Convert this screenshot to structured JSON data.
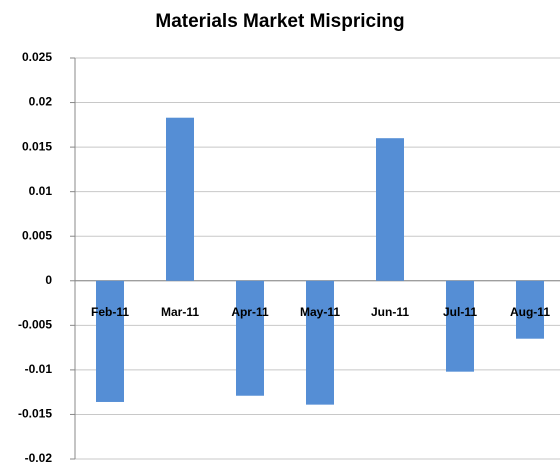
{
  "chart_data": {
    "type": "bar",
    "title": "Materials Market Mispricing",
    "categories": [
      "Feb-11",
      "Mar-11",
      "Apr-11",
      "May-11",
      "Jun-11",
      "Jul-11",
      "Aug-11"
    ],
    "values": [
      -0.0136,
      0.0183,
      -0.0129,
      -0.0139,
      0.016,
      -0.0102,
      -0.0065
    ],
    "color": "#558ed5",
    "ylim": [
      -0.02,
      0.025
    ],
    "yticks": [
      -0.02,
      -0.015,
      -0.01,
      -0.005,
      0,
      0.005,
      0.01,
      0.015,
      0.02,
      0.025
    ],
    "grid": true
  }
}
